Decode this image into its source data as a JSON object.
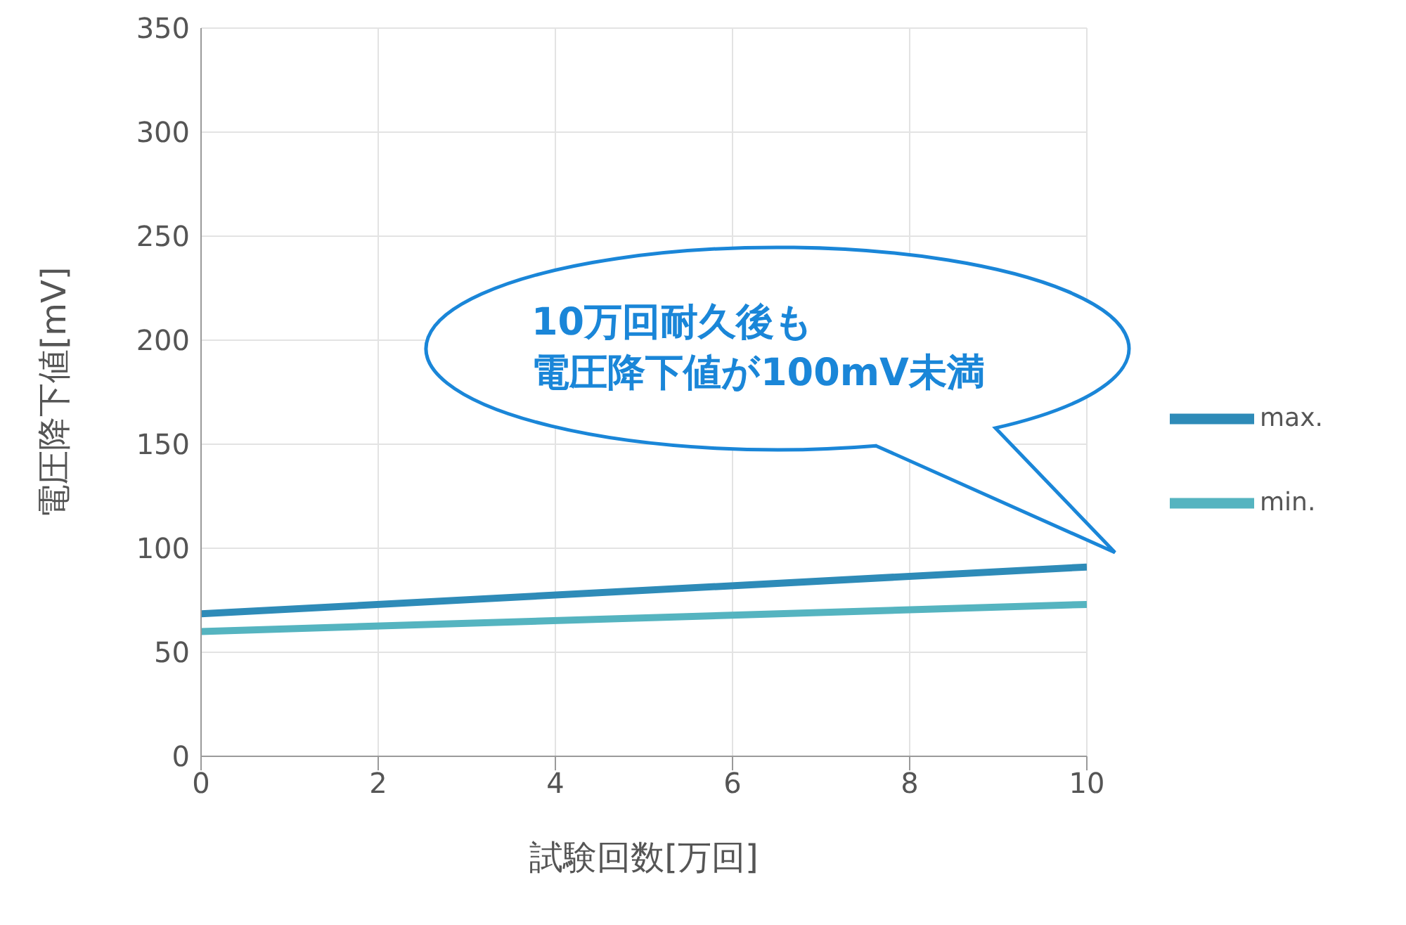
{
  "chart_data": {
    "type": "line",
    "xlabel": "試験回数[万回]",
    "ylabel": "電圧降下値[mV]",
    "x": [
      0,
      10
    ],
    "series": [
      {
        "name": "max.",
        "color": "#2e8bb8",
        "values": [
          68.5,
          91
        ]
      },
      {
        "name": "min.",
        "color": "#55b4c0",
        "values": [
          60,
          73
        ]
      }
    ],
    "xlim": [
      0,
      10
    ],
    "xticks": [
      0,
      2,
      4,
      6,
      8,
      10
    ],
    "ylim": [
      0,
      350
    ],
    "yticks": [
      0,
      50,
      100,
      150,
      200,
      250,
      300,
      350
    ],
    "grid": true,
    "legend": "right",
    "marker": "none",
    "line_style": "solid",
    "annotations": [
      "10万回耐久後も",
      "電圧降下値が100mV未満"
    ]
  }
}
